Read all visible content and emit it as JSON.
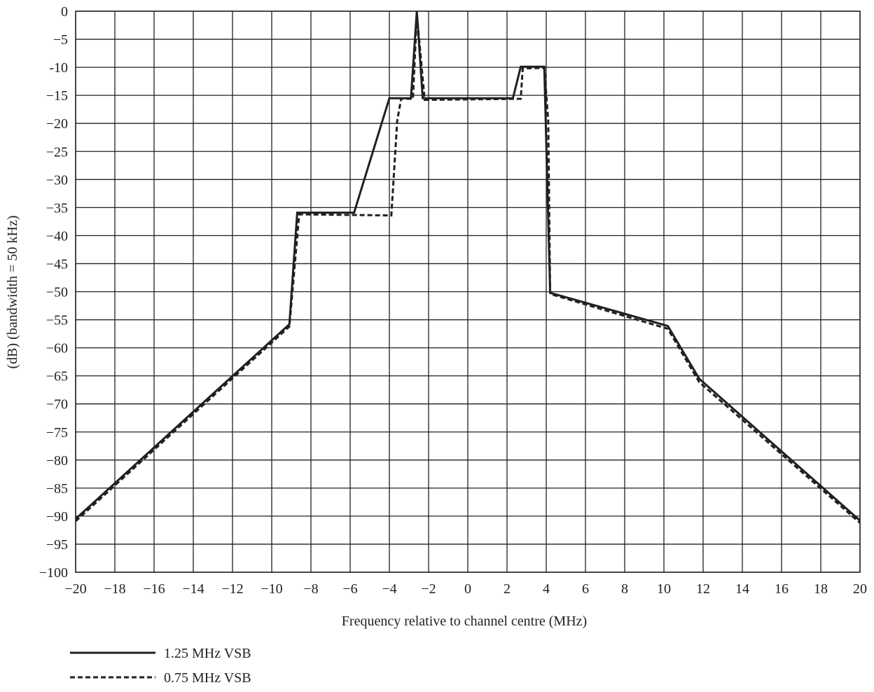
{
  "chart_data": {
    "type": "line",
    "title": "",
    "xlabel": "Frequency relative to channel centre (MHz)",
    "ylabel": "(dB) (bandwidth = 50 kHz)",
    "xlim": [
      -20,
      20
    ],
    "ylim": [
      -100,
      0
    ],
    "xticks": [
      -20,
      -18,
      -16,
      -14,
      -12,
      -10,
      -8,
      -6,
      -4,
      -2,
      0,
      2,
      4,
      6,
      8,
      10,
      12,
      14,
      16,
      18,
      20
    ],
    "xtick_labels": [
      "−20",
      "−18",
      "−16",
      "−14",
      "−12",
      "−10",
      "−8",
      "−6",
      "−4",
      "−2",
      "0",
      "2",
      "4",
      "6",
      "8",
      "10",
      "12",
      "14",
      "16",
      "18",
      "20"
    ],
    "yticks": [
      0,
      -5,
      -10,
      -15,
      -20,
      -25,
      -30,
      -35,
      -40,
      -45,
      -50,
      -55,
      -60,
      -65,
      -70,
      -75,
      -80,
      -85,
      -90,
      -95,
      -100
    ],
    "ytick_labels": [
      "0",
      "−5",
      "-10",
      "−15",
      "−20",
      "−25",
      "−30",
      "−35",
      "−40",
      "−45",
      "−50",
      "−55",
      "−60",
      "−65",
      "−70",
      "−75",
      "−80",
      "−85",
      "−90",
      "−95",
      "−100"
    ],
    "x_grid_step": 2,
    "grid": true,
    "legend_position": "bottom-left, below axes",
    "series": [
      {
        "name": "1.25 MHz VSB",
        "style": "solid",
        "color": "#231f20",
        "points": [
          [
            -20,
            -90.5
          ],
          [
            -9.1,
            -55.8
          ],
          [
            -8.7,
            -35.9
          ],
          [
            -5.8,
            -35.9
          ],
          [
            -4,
            -15.5
          ],
          [
            -2.9,
            -15.5
          ],
          [
            -2.6,
            0
          ],
          [
            -2.3,
            -15.5
          ],
          [
            2.3,
            -15.5
          ],
          [
            2.7,
            -9.9
          ],
          [
            3.9,
            -9.9
          ],
          [
            4.2,
            -50.2
          ],
          [
            10.2,
            -56.1
          ],
          [
            11.8,
            -65.5
          ],
          [
            20,
            -90.8
          ]
        ]
      },
      {
        "name": "0.75 MHz VSB",
        "style": "dashed",
        "color": "#231f20",
        "points": [
          [
            -20,
            -90.9
          ],
          [
            -9.1,
            -56.2
          ],
          [
            -8.6,
            -36.2
          ],
          [
            -3.9,
            -36.4
          ],
          [
            -3.6,
            -19.5
          ],
          [
            -3.4,
            -15.6
          ],
          [
            -2.8,
            -15.6
          ],
          [
            -2.6,
            -0.5
          ],
          [
            -2.2,
            -15.8
          ],
          [
            2.7,
            -15.6
          ],
          [
            2.8,
            -10.2
          ],
          [
            3.9,
            -10.1
          ],
          [
            4.1,
            -19.5
          ],
          [
            4.2,
            -50.4
          ],
          [
            10.2,
            -56.6
          ],
          [
            11.8,
            -66.1
          ],
          [
            20,
            -91.2
          ]
        ]
      }
    ]
  }
}
